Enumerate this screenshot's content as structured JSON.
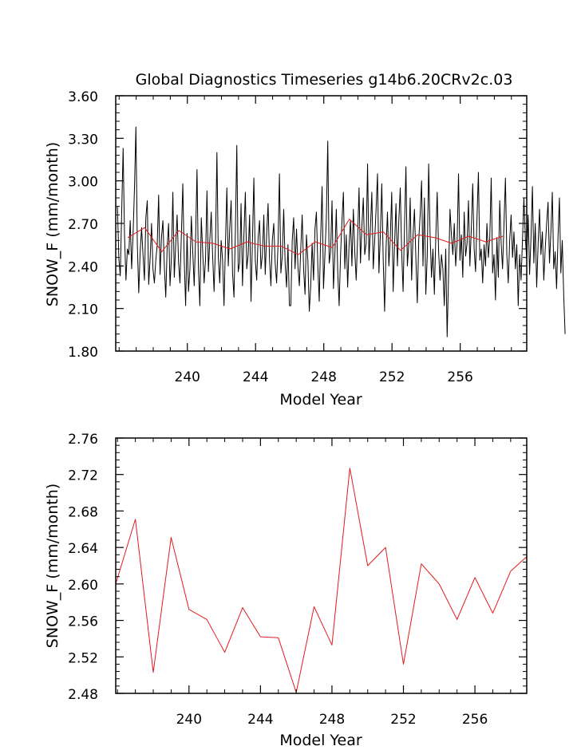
{
  "title": "Global Diagnostics Timeseries g14b6.20CRv2c.03",
  "colors": {
    "axis": "#000000",
    "monthly": "#000000",
    "annual": "#e31a1c"
  },
  "chart_data": [
    {
      "type": "line",
      "xlabel": "Model Year",
      "ylabel": "SNOW_F (mm/month)",
      "xlim": [
        235.8,
        259.9
      ],
      "ylim": [
        1.8,
        3.6
      ],
      "x_ticks": [
        "240",
        "244",
        "248",
        "252",
        "256"
      ],
      "y_ticks": [
        "1.80",
        "2.10",
        "2.40",
        "2.70",
        "3.00",
        "3.30",
        "3.60"
      ],
      "series": [
        {
          "color": "#000000",
          "x_start": 235.9,
          "x_step": 0.083333,
          "values": [
            2.82,
            2.45,
            2.33,
            2.78,
            3.23,
            2.61,
            2.3,
            2.52,
            2.48,
            2.72,
            2.38,
            2.62,
            2.95,
            3.38,
            2.55,
            2.21,
            2.5,
            2.67,
            2.48,
            2.3,
            2.74,
            2.86,
            2.27,
            2.45,
            2.7,
            2.38,
            2.28,
            2.44,
            2.55,
            2.9,
            2.34,
            2.6,
            2.72,
            2.4,
            2.18,
            2.53,
            2.7,
            2.26,
            2.46,
            2.92,
            2.32,
            2.55,
            2.76,
            2.43,
            2.28,
            2.62,
            2.98,
            2.44,
            2.12,
            2.63,
            2.22,
            2.38,
            2.75,
            2.5,
            2.26,
            2.6,
            3.08,
            2.38,
            2.12,
            2.74,
            2.5,
            2.28,
            2.45,
            2.93,
            2.36,
            2.58,
            2.78,
            2.47,
            2.22,
            2.55,
            3.2,
            2.46,
            2.28,
            2.58,
            2.44,
            2.12,
            2.55,
            2.95,
            2.4,
            2.66,
            2.86,
            2.35,
            2.18,
            2.65,
            3.25,
            2.36,
            2.42,
            2.84,
            2.26,
            2.62,
            2.92,
            2.38,
            2.48,
            2.76,
            2.15,
            2.58,
            3.02,
            2.44,
            2.3,
            2.6,
            2.72,
            2.38,
            2.48,
            2.76,
            2.34,
            2.62,
            2.84,
            2.45,
            2.26,
            2.58,
            2.7,
            2.42,
            2.28,
            2.55,
            3.05,
            2.35,
            2.47,
            2.8,
            2.42,
            2.25,
            2.55,
            2.12,
            2.12,
            2.58,
            2.74,
            2.38,
            2.66,
            2.4,
            2.26,
            2.52,
            2.76,
            2.38,
            2.2,
            2.62,
            2.44,
            2.08,
            2.26,
            2.56,
            2.3,
            2.66,
            2.78,
            2.4,
            2.15,
            2.6,
            2.96,
            2.24,
            2.48,
            2.74,
            3.28,
            2.42,
            2.5,
            2.86,
            2.24,
            2.48,
            2.8,
            2.36,
            2.12,
            2.48,
            2.72,
            2.92,
            2.38,
            2.62,
            2.25,
            2.55,
            2.72,
            2.4,
            2.8,
            2.5,
            2.3,
            2.6,
            2.95,
            2.42,
            2.68,
            2.88,
            2.48,
            2.56,
            3.12,
            2.44,
            2.66,
            2.92,
            2.38,
            2.58,
            2.8,
            3.05,
            2.35,
            2.62,
            2.98,
            2.45,
            2.08,
            2.52,
            2.78,
            2.4,
            2.6,
            2.92,
            2.22,
            2.55,
            2.84,
            2.4,
            2.72,
            2.95,
            2.5,
            2.22,
            2.68,
            3.1,
            2.4,
            2.55,
            2.88,
            2.3,
            2.62,
            2.8,
            2.45,
            2.14,
            2.58,
            2.76,
            3.0,
            2.4,
            2.88,
            2.2,
            2.47,
            3.12,
            2.62,
            2.32,
            2.52,
            2.2,
            2.6,
            2.92,
            2.5,
            2.3,
            2.48,
            2.38,
            2.12,
            2.52,
            1.9,
            2.34,
            2.8,
            2.62,
            2.48,
            2.7,
            2.4,
            2.56,
            3.05,
            2.44,
            2.62,
            2.32,
            2.78,
            2.47,
            2.56,
            2.86,
            2.4,
            2.66,
            2.98,
            2.52,
            2.36,
            2.74,
            3.06,
            2.44,
            2.52,
            2.28,
            2.55,
            2.4,
            2.7,
            2.46,
            2.6,
            3.02,
            2.35,
            2.48,
            2.16,
            2.6,
            2.32,
            2.86,
            2.56,
            2.38,
            2.7,
            3.02,
            2.48,
            2.28,
            2.58,
            2.76,
            2.46,
            2.64,
            2.38,
            2.55,
            2.12,
            2.48,
            2.3,
            2.58,
            2.88,
            2.6,
            2.44,
            2.76,
            2.34,
            2.6,
            2.96,
            2.42,
            2.7,
            2.25,
            2.55,
            2.8,
            2.48,
            2.64,
            2.3,
            2.52,
            2.7,
            2.85,
            2.42,
            2.64,
            2.92,
            2.38,
            2.5,
            2.24,
            2.6,
            2.88,
            2.35,
            2.58,
            2.2,
            1.92
          ]
        },
        {
          "color": "#e31a1c",
          "x": [
            236.5,
            237.5,
            238.5,
            239.5,
            240.5,
            241.5,
            242.5,
            243.5,
            244.5,
            245.5,
            246.5,
            247.5,
            248.5,
            249.5,
            250.5,
            251.5,
            252.5,
            253.5,
            254.5,
            255.5,
            256.5,
            257.5,
            258.5
          ],
          "values": [
            2.6,
            2.67,
            2.5,
            2.65,
            2.57,
            2.56,
            2.52,
            2.57,
            2.54,
            2.54,
            2.48,
            2.57,
            2.53,
            2.73,
            2.62,
            2.64,
            2.51,
            2.62,
            2.6,
            2.56,
            2.61,
            2.57,
            2.61
          ]
        }
      ]
    },
    {
      "type": "line",
      "xlabel": "Model Year",
      "ylabel": "SNOW_F (mm/month)",
      "xlim": [
        235.9,
        258.9
      ],
      "ylim": [
        2.48,
        2.76
      ],
      "x_ticks": [
        "240",
        "244",
        "248",
        "252",
        "256"
      ],
      "y_ticks": [
        "2.48",
        "2.52",
        "2.56",
        "2.60",
        "2.64",
        "2.68",
        "2.72",
        "2.76"
      ],
      "series": [
        {
          "color": "#e31a1c",
          "x": [
            235.9,
            237.0,
            238.0,
            239.0,
            240.0,
            241.0,
            242.0,
            243.0,
            244.0,
            245.0,
            246.0,
            247.0,
            248.0,
            249.0,
            250.0,
            251.0,
            252.0,
            253.0,
            254.0,
            255.0,
            256.0,
            257.0,
            258.0,
            258.9
          ],
          "values": [
            2.6,
            2.671,
            2.503,
            2.651,
            2.572,
            2.561,
            2.525,
            2.574,
            2.542,
            2.541,
            2.481,
            2.575,
            2.533,
            2.727,
            2.62,
            2.64,
            2.512,
            2.622,
            2.6,
            2.561,
            2.607,
            2.568,
            2.614,
            2.63
          ]
        }
      ]
    }
  ]
}
